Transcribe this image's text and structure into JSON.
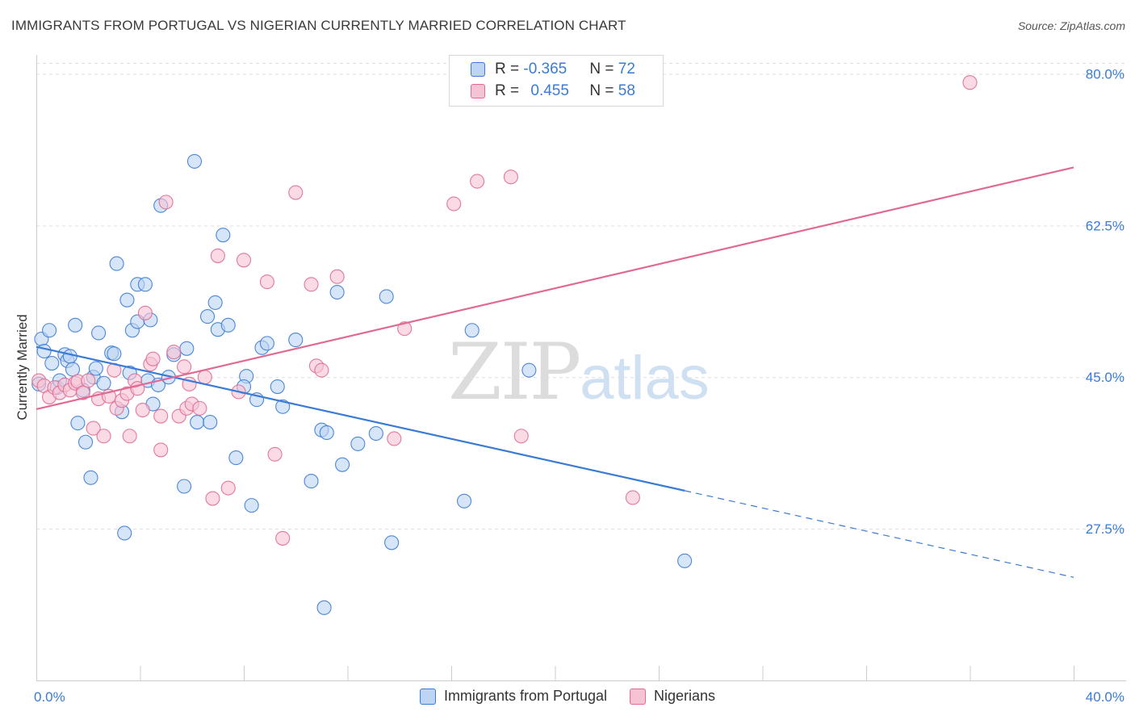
{
  "title": "IMMIGRANTS FROM PORTUGAL VS NIGERIAN CURRENTLY MARRIED CORRELATION CHART",
  "source": "Source: ZipAtlas.com",
  "watermark": {
    "zip": "ZIP",
    "atlas": "atlas"
  },
  "legend": {
    "rows": [
      {
        "r_label": "R = ",
        "r_value": "-0.365",
        "n_label": "N = ",
        "n_value": "72"
      },
      {
        "r_label": "R = ",
        "r_value": "0.455",
        "n_label": "N = ",
        "n_value": "58"
      }
    ]
  },
  "colors": {
    "blue": "#3a7bd5",
    "blue_fill": "#bdd4f4",
    "pink": "#e06a93",
    "pink_fill": "#f6c3d4",
    "tick_text": "#3a7bd5"
  },
  "chart_data": {
    "type": "scatter",
    "title": "IMMIGRANTS FROM PORTUGAL VS NIGERIAN CURRENTLY MARRIED CORRELATION CHART",
    "xlabel": "",
    "ylabel": "Currently Married",
    "xlim": [
      0,
      40
    ],
    "ylim": [
      10,
      82
    ],
    "x_tick_labels": [
      "0.0%",
      "40.0%"
    ],
    "y_ticks": [
      27.5,
      45.0,
      62.5,
      80.0
    ],
    "y_tick_labels": [
      "27.5%",
      "45.0%",
      "62.5%",
      "80.0%"
    ],
    "grid": true,
    "legend_placement": "bottom-center",
    "series": [
      {
        "name": "Immigrants from Portugal",
        "color": "#3a7bd5",
        "r": -0.365,
        "n": 72,
        "trend": {
          "x0": 0,
          "y0": 48.5,
          "x1": 25,
          "y1": 31.9,
          "dashed_to_x": 40,
          "dashed_to_y": 21.9
        },
        "points": [
          [
            0.1,
            44.2
          ],
          [
            0.2,
            49.4
          ],
          [
            0.3,
            48.0
          ],
          [
            0.5,
            50.4
          ],
          [
            0.6,
            46.6
          ],
          [
            0.8,
            43.8
          ],
          [
            0.9,
            44.6
          ],
          [
            1.1,
            47.6
          ],
          [
            1.2,
            46.9
          ],
          [
            1.3,
            47.4
          ],
          [
            1.4,
            45.9
          ],
          [
            1.5,
            51.0
          ],
          [
            1.6,
            39.7
          ],
          [
            1.8,
            43.5
          ],
          [
            1.9,
            37.5
          ],
          [
            2.1,
            33.4
          ],
          [
            2.2,
            45.0
          ],
          [
            2.3,
            46.0
          ],
          [
            2.4,
            50.1
          ],
          [
            2.6,
            44.3
          ],
          [
            2.9,
            47.8
          ],
          [
            3.0,
            47.7
          ],
          [
            3.1,
            58.1
          ],
          [
            3.3,
            41.0
          ],
          [
            3.4,
            27.0
          ],
          [
            3.5,
            53.9
          ],
          [
            3.6,
            45.5
          ],
          [
            3.7,
            50.4
          ],
          [
            3.9,
            51.4
          ],
          [
            3.9,
            55.7
          ],
          [
            4.2,
            55.7
          ],
          [
            4.3,
            44.6
          ],
          [
            4.4,
            51.6
          ],
          [
            4.5,
            41.9
          ],
          [
            4.7,
            44.1
          ],
          [
            4.8,
            64.8
          ],
          [
            5.1,
            45.0
          ],
          [
            5.3,
            47.6
          ],
          [
            5.8,
            48.3
          ],
          [
            5.7,
            32.4
          ],
          [
            6.1,
            69.9
          ],
          [
            6.2,
            39.8
          ],
          [
            6.6,
            52.0
          ],
          [
            6.7,
            39.8
          ],
          [
            6.9,
            53.6
          ],
          [
            7.0,
            50.5
          ],
          [
            7.2,
            61.4
          ],
          [
            7.4,
            51.0
          ],
          [
            7.7,
            35.7
          ],
          [
            8.1,
            45.1
          ],
          [
            8.0,
            43.9
          ],
          [
            8.3,
            30.2
          ],
          [
            8.5,
            42.4
          ],
          [
            8.7,
            48.4
          ],
          [
            8.9,
            48.9
          ],
          [
            9.3,
            43.9
          ],
          [
            9.5,
            41.6
          ],
          [
            10.0,
            49.3
          ],
          [
            10.6,
            33.0
          ],
          [
            11.0,
            38.9
          ],
          [
            11.2,
            38.6
          ],
          [
            11.6,
            54.8
          ],
          [
            11.8,
            34.9
          ],
          [
            11.1,
            18.4
          ],
          [
            12.4,
            37.3
          ],
          [
            13.1,
            38.5
          ],
          [
            13.5,
            54.3
          ],
          [
            13.7,
            25.9
          ],
          [
            16.8,
            50.4
          ],
          [
            16.5,
            30.7
          ],
          [
            19.0,
            45.8
          ],
          [
            25.0,
            23.8
          ]
        ]
      },
      {
        "name": "Nigerians",
        "color": "#e06a93",
        "r": 0.455,
        "n": 58,
        "trend": {
          "x0": 0,
          "y0": 41.3,
          "x1": 40,
          "y1": 69.2
        },
        "points": [
          [
            0.1,
            44.6
          ],
          [
            0.3,
            44.0
          ],
          [
            0.5,
            42.7
          ],
          [
            0.7,
            43.8
          ],
          [
            0.9,
            43.2
          ],
          [
            1.1,
            44.1
          ],
          [
            1.3,
            43.5
          ],
          [
            1.5,
            44.3
          ],
          [
            1.6,
            44.5
          ],
          [
            1.8,
            43.2
          ],
          [
            2.0,
            44.6
          ],
          [
            2.2,
            39.1
          ],
          [
            2.4,
            42.5
          ],
          [
            2.6,
            38.2
          ],
          [
            2.8,
            42.8
          ],
          [
            3.0,
            45.8
          ],
          [
            3.1,
            41.4
          ],
          [
            3.3,
            42.3
          ],
          [
            3.5,
            43.1
          ],
          [
            3.6,
            38.2
          ],
          [
            3.8,
            44.6
          ],
          [
            3.9,
            43.7
          ],
          [
            4.1,
            41.2
          ],
          [
            4.2,
            52.4
          ],
          [
            4.4,
            46.5
          ],
          [
            4.5,
            47.1
          ],
          [
            4.8,
            40.5
          ],
          [
            4.8,
            36.6
          ],
          [
            5.0,
            65.2
          ],
          [
            5.3,
            47.9
          ],
          [
            5.5,
            40.5
          ],
          [
            5.7,
            46.2
          ],
          [
            5.8,
            41.4
          ],
          [
            5.9,
            44.2
          ],
          [
            6.0,
            41.9
          ],
          [
            6.3,
            41.4
          ],
          [
            6.5,
            45.0
          ],
          [
            6.8,
            31.0
          ],
          [
            7.0,
            59.0
          ],
          [
            7.4,
            32.2
          ],
          [
            7.8,
            43.3
          ],
          [
            8.0,
            58.5
          ],
          [
            8.9,
            56.0
          ],
          [
            9.2,
            36.1
          ],
          [
            9.5,
            26.4
          ],
          [
            10.0,
            66.3
          ],
          [
            10.6,
            55.7
          ],
          [
            10.8,
            46.3
          ],
          [
            11.0,
            45.8
          ],
          [
            11.6,
            56.6
          ],
          [
            13.8,
            37.9
          ],
          [
            14.2,
            50.6
          ],
          [
            17.0,
            67.6
          ],
          [
            16.1,
            65.0
          ],
          [
            18.3,
            68.1
          ],
          [
            18.7,
            38.2
          ],
          [
            23.0,
            31.1
          ],
          [
            36.0,
            79.0
          ]
        ]
      }
    ]
  }
}
